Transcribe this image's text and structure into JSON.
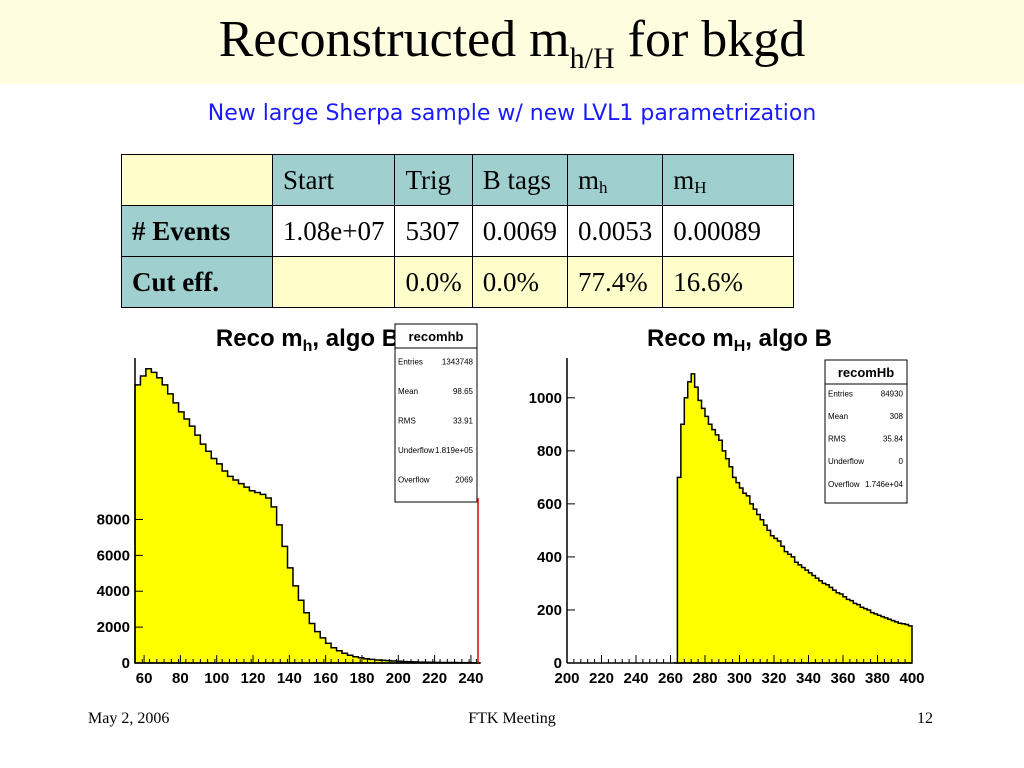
{
  "slide": {
    "title_main": "Reconstructed m",
    "title_sub": "h/H",
    "title_tail": " for bkgd",
    "subtitle": "New large Sherpa sample w/ new LVL1 parametrization"
  },
  "table": {
    "headers": [
      {
        "base": "Start",
        "sub": ""
      },
      {
        "base": "Trig",
        "sub": ""
      },
      {
        "base": "B tags",
        "sub": ""
      },
      {
        "base": "m",
        "sub": "h"
      },
      {
        "base": "m",
        "sub": "H"
      }
    ],
    "rows": [
      {
        "label": "# Events",
        "cells": [
          "1.08e+07",
          "5307",
          "0.0069",
          "0.0053",
          "0.00089"
        ]
      },
      {
        "label": "Cut eff.",
        "cells": [
          "",
          "0.0%",
          "0.0%",
          "77.4%",
          "16.6%"
        ]
      }
    ]
  },
  "chart_data": [
    {
      "type": "area",
      "title": "Reco m",
      "title_sub": "h",
      "title_tail": ", algo B",
      "xlim": [
        55,
        245
      ],
      "ylim": [
        0,
        17000
      ],
      "xticks": [
        60,
        80,
        100,
        120,
        140,
        160,
        180,
        200,
        220,
        240
      ],
      "yticks": [
        0,
        2000,
        4000,
        6000,
        8000
      ],
      "x": [
        55,
        58,
        61,
        64,
        67,
        70,
        73,
        76,
        79,
        82,
        85,
        88,
        91,
        94,
        97,
        100,
        103,
        106,
        109,
        112,
        115,
        118,
        121,
        124,
        127,
        130,
        133,
        136,
        139,
        142,
        145,
        148,
        151,
        154,
        157,
        160,
        163,
        166,
        169,
        172,
        175,
        178,
        181,
        184,
        187,
        190,
        193,
        196,
        199,
        202,
        205,
        208,
        211,
        214,
        217,
        220,
        223,
        226,
        229,
        232,
        235,
        238,
        241,
        244
      ],
      "y": [
        15500,
        16000,
        16400,
        16200,
        15900,
        15500,
        15000,
        14500,
        14000,
        13600,
        13200,
        12700,
        12200,
        11800,
        11400,
        11100,
        10700,
        10400,
        10200,
        10000,
        9800,
        9600,
        9500,
        9400,
        9200,
        8700,
        7700,
        6500,
        5300,
        4300,
        3500,
        2800,
        2200,
        1750,
        1400,
        1100,
        850,
        680,
        540,
        430,
        350,
        290,
        240,
        200,
        170,
        150,
        130,
        110,
        95,
        80,
        70,
        60,
        50,
        45,
        40,
        35,
        30,
        28,
        25,
        22,
        20,
        18,
        16,
        15
      ],
      "stats": {
        "name": "recomhb",
        "rows": [
          {
            "label": "Entries",
            "value": "1343748"
          },
          {
            "label": "Mean",
            "value": "98.65"
          },
          {
            "label": "RMS",
            "value": "33.91"
          },
          {
            "label": "Underflow",
            "value": "1.819e+05"
          },
          {
            "label": "Overflow",
            "value": "2069"
          }
        ]
      }
    },
    {
      "type": "area",
      "title": "Reco m",
      "title_sub": "H",
      "title_tail": ", algo B",
      "xlim": [
        200,
        400
      ],
      "ylim": [
        0,
        1150
      ],
      "xticks": [
        200,
        220,
        240,
        260,
        280,
        300,
        320,
        340,
        360,
        380,
        400
      ],
      "yticks": [
        0,
        200,
        400,
        600,
        800,
        1000
      ],
      "x": [
        262,
        264,
        266,
        268,
        270,
        272,
        274,
        276,
        278,
        280,
        282,
        284,
        286,
        288,
        290,
        292,
        294,
        296,
        298,
        300,
        302,
        304,
        306,
        308,
        310,
        312,
        314,
        316,
        318,
        320,
        322,
        324,
        326,
        328,
        330,
        332,
        334,
        336,
        338,
        340,
        342,
        344,
        346,
        348,
        350,
        352,
        354,
        356,
        358,
        360,
        362,
        364,
        366,
        368,
        370,
        372,
        374,
        376,
        378,
        380,
        382,
        384,
        386,
        388,
        390,
        392,
        394,
        396,
        398,
        400
      ],
      "y": [
        0,
        700,
        900,
        1000,
        1060,
        1090,
        1040,
        990,
        960,
        930,
        900,
        880,
        860,
        840,
        800,
        770,
        740,
        700,
        680,
        660,
        640,
        630,
        600,
        580,
        560,
        540,
        520,
        500,
        480,
        470,
        460,
        440,
        420,
        410,
        400,
        380,
        370,
        360,
        350,
        340,
        330,
        320,
        310,
        300,
        295,
        285,
        275,
        265,
        260,
        250,
        240,
        235,
        225,
        220,
        210,
        205,
        200,
        190,
        185,
        180,
        175,
        170,
        165,
        160,
        155,
        150,
        148,
        145,
        140,
        140
      ],
      "stats": {
        "name": "recomHb",
        "rows": [
          {
            "label": "Entries",
            "value": "84930"
          },
          {
            "label": "Mean",
            "value": "308"
          },
          {
            "label": "RMS",
            "value": "35.84"
          },
          {
            "label": "Underflow",
            "value": "0"
          },
          {
            "label": "Overflow",
            "value": "1.746e+04"
          }
        ]
      }
    }
  ],
  "footer": {
    "date": "May 2, 2006",
    "meeting": "FTK Meeting",
    "page": "12"
  },
  "colors": {
    "title_bg": "#fffde0",
    "subtitle": "#1a1aff",
    "table_teal": "#9fd0cf",
    "table_pale": "#ffffcc",
    "hist_fill": "#ffff00"
  }
}
